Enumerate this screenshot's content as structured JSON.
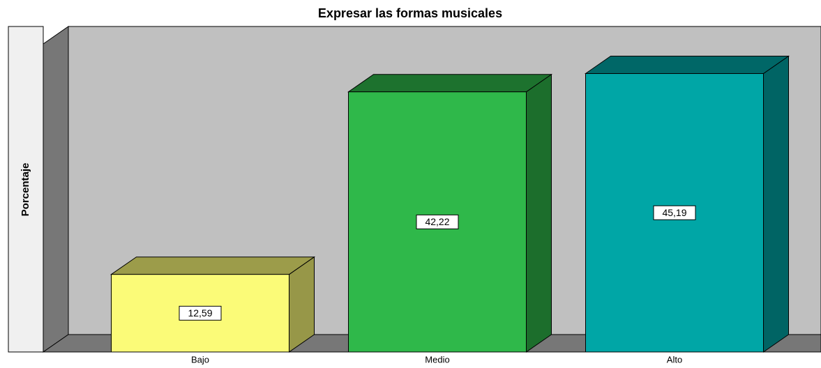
{
  "chart_data": {
    "type": "bar3d",
    "title": "Expresar las formas musicales",
    "y_label": "Porcentaje",
    "categories": [
      "Bajo",
      "Medio",
      "Alto"
    ],
    "values": [
      12.59,
      42.22,
      45.19
    ],
    "value_labels": [
      "12,59",
      "42,22",
      "45,19"
    ],
    "colors": [
      "#fbfb78",
      "#2fb84a",
      "#00a6a6"
    ],
    "ylim": [
      0,
      50
    ]
  }
}
